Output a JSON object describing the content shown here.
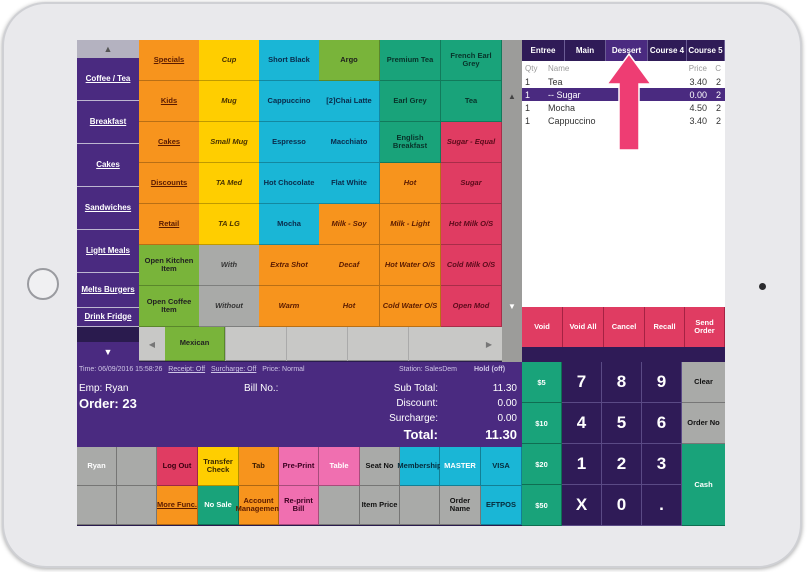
{
  "nav": {
    "items": [
      "Coffee / Tea",
      "Breakfast",
      "Cakes",
      "Sandwiches",
      "Light Meals",
      "Melts Burgers",
      "Drink Fridge"
    ]
  },
  "grid": {
    "col0": [
      "Specials",
      "Kids",
      "Cakes",
      "Discounts",
      "Retail",
      "Open Kitchen Item",
      "Open Coffee Item"
    ],
    "col1": [
      "Cup",
      "Mug",
      "Small Mug",
      "TA Med",
      "TA LG",
      "With",
      "Without"
    ],
    "col2": [
      "Short Black",
      "Cappuccino",
      "Espresso",
      "Hot Chocolate",
      "Mocha",
      "Extra Shot",
      "Warm"
    ],
    "col3": [
      "Argo",
      "[2]Chai Latte",
      "Macchiato",
      "Flat White",
      "Milk - Soy",
      "Decaf",
      "Hot"
    ],
    "col4": [
      "Premium Tea",
      "Earl Grey",
      "English Breakfast",
      "Hot",
      "Milk - Light",
      "Hot Water O/S",
      "Cold Water O/S"
    ],
    "col5": [
      "French Earl Grey",
      "Tea",
      "Sugar - Equal",
      "Sugar",
      "Hot Milk O/S",
      "Cold Milk O/S",
      "Open Mod"
    ],
    "mexican": "Mexican"
  },
  "colors": {
    "purple": "#4a2a80",
    "dark": "#2f1b57",
    "orange": "#f7941d",
    "yellow": "#ffce00",
    "cyan": "#1ab6d6",
    "green": "#79b43a",
    "red": "#e03c62",
    "teal": "#19a37a",
    "pink": "#f06fb0",
    "highlight": "#ee3d73"
  },
  "status": {
    "time": "Time: 06/09/2016 15:58:26",
    "receipt": "Receipt: Off",
    "surcharge": "Surcharge: Off",
    "price": "Price: Normal",
    "station": "Station: SalesDem",
    "hold": "Hold (off)"
  },
  "bill": {
    "emp": "Emp: Ryan",
    "bill_no": "Bill No.:",
    "order": "Order: 23",
    "sub_total_label": "Sub Total:",
    "sub_total": "11.30",
    "discount_label": "Discount:",
    "discount": "0.00",
    "surcharge_label": "Surcharge:",
    "surcharge": "0.00",
    "total_label": "Total:",
    "total": "11.30"
  },
  "courses": [
    "Entree",
    "Main",
    "Dessert",
    "Course 4",
    "Course 5"
  ],
  "order_header": {
    "qty": "Qty",
    "name": "Name",
    "price": "Price",
    "c": "C"
  },
  "order_items": [
    {
      "qty": "1",
      "name": "Tea",
      "price": "3.40",
      "c": "2"
    },
    {
      "qty": "1",
      "name": "-- Sugar",
      "price": "0.00",
      "c": "2"
    },
    {
      "qty": "1",
      "name": "Mocha",
      "price": "4.50",
      "c": "2"
    },
    {
      "qty": "1",
      "name": "Cappuccino",
      "price": "3.40",
      "c": "2"
    }
  ],
  "actions": [
    "Void",
    "Void All",
    "Cancel",
    "Recall",
    "Send Order"
  ],
  "quick_cash": [
    "$5",
    "$10",
    "$20",
    "$50"
  ],
  "keypad": [
    "7",
    "8",
    "9",
    "4",
    "5",
    "6",
    "1",
    "2",
    "3",
    "X",
    "0",
    "."
  ],
  "keypad_side": {
    "clear": "Clear",
    "order_no": "Order No",
    "cash": "Cash"
  },
  "bottom1": [
    "Ryan",
    "",
    "Log Out",
    "Transfer Check",
    "Tab",
    "Pre-Print",
    "Table",
    "Seat No",
    "Membership",
    "MASTER",
    "VISA"
  ],
  "bottom2": [
    "",
    "",
    "More Func.",
    "No Sale",
    "Account Management",
    "Re-print Bill",
    "",
    "Item Price",
    "",
    "Order Name",
    "EFTPOS"
  ],
  "scroll": {
    "up": "▲",
    "down": "▼",
    "left": "◀",
    "right": "▶"
  }
}
